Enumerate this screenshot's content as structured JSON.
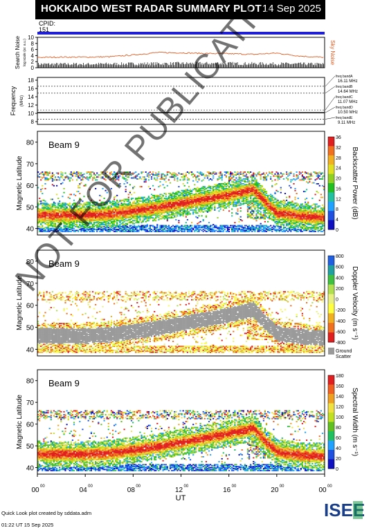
{
  "header": {
    "title": "HOKKAIDO WEST RADAR SUMMARY PLOT",
    "date": "14 Sep 2025"
  },
  "cpid": {
    "label": "CPID:",
    "value": "151"
  },
  "noise_panel": {
    "ylabel": "Search Noise",
    "ylabel_sub": "log scale (ar. a.u.)",
    "side_label": "Sky Noise",
    "ticks": [
      "10",
      "8",
      "6",
      "4",
      "2",
      "0"
    ]
  },
  "freq_panel": {
    "ylabel": "Frequency",
    "ylabel_sub": "(MHz)",
    "ticks": [
      "18",
      "16",
      "14",
      "12",
      "10",
      "8"
    ],
    "bands": [
      {
        "label": "freq bandA",
        "value": "16.11 MHz"
      },
      {
        "label": "freq bandB",
        "value": "14.64 MHz"
      },
      {
        "label": "freq bandC",
        "value": "11.07 MHz"
      },
      {
        "label": "freq bandD",
        "value": "10.50 MHz"
      },
      {
        "label": "freq bandE",
        "value": "9.11 MHz"
      }
    ]
  },
  "panels": [
    {
      "beam": "Beam  9",
      "ylabel": "Magnetic Latitude",
      "cbar_label": "Backscatter Power (dB)",
      "cbar_ticks": [
        "36",
        "32",
        "28",
        "24",
        "20",
        "16",
        "12",
        "8",
        "4",
        "0"
      ]
    },
    {
      "beam": "Beam  9",
      "ylabel": "Magnetic Latitude",
      "cbar_label": "Doppler Velocity (m s⁻¹)",
      "cbar_ticks": [
        "800",
        "600",
        "400",
        "200",
        "0",
        "-200",
        "-400",
        "-600",
        "-800"
      ],
      "ground_label_1": "Ground",
      "ground_label_2": "Scatter"
    },
    {
      "beam": "Beam  9",
      "ylabel": "Magnetic Latitude",
      "cbar_label": "Spectral Width (m s⁻¹)",
      "cbar_ticks": [
        "180",
        "160",
        "140",
        "120",
        "100",
        "80",
        "60",
        "40",
        "20",
        "0"
      ]
    }
  ],
  "lat_ticks": [
    "80",
    "70",
    "60",
    "50",
    "40"
  ],
  "xaxis": {
    "ticks": [
      "00",
      "04",
      "08",
      "12",
      "16",
      "20",
      "00"
    ],
    "tick_sup": "00",
    "label": "UT"
  },
  "watermark": "NOT FOR PUBLICATION",
  "footer": {
    "line1": "Quick Look plot created by sddata.adm",
    "line2": "01:22 UT 15 Sep 2025"
  },
  "logo": "ISEE",
  "colors": {
    "header_bg": "#000000",
    "cpid_bar": "#1f1fd6",
    "noise_line": "#e05a20",
    "ground": "#9a9a9a"
  },
  "chart_data": [
    {
      "type": "line",
      "title": "Search Noise",
      "x_unit": "UT hours",
      "xlim": [
        0,
        24
      ],
      "ylim": [
        0,
        10
      ],
      "series": [
        {
          "name": "Sky Noise",
          "x": [
            0,
            2,
            4,
            6,
            8,
            10,
            12,
            14,
            16,
            18,
            20,
            22,
            24
          ],
          "values": [
            3.4,
            3.5,
            3.5,
            3.6,
            4.2,
            5.0,
            4.9,
            4.7,
            4.6,
            4.4,
            4.8,
            3.8,
            3.4
          ]
        },
        {
          "x": [
            0,
            4,
            8,
            12,
            16,
            20,
            24
          ],
          "values": [
            1.2,
            1.2,
            1.3,
            1.4,
            1.4,
            1.3,
            1.2
          ]
        }
      ]
    },
    {
      "type": "line",
      "title": "Frequency",
      "xlim": [
        0,
        24
      ],
      "ylim": [
        8,
        18
      ],
      "series": [
        {
          "x": [
            0,
            24
          ],
          "values": [
            10.5,
            10.5
          ]
        }
      ],
      "reference_lines": [
        16.11,
        14.64,
        11.07,
        10.5,
        9.11
      ]
    },
    {
      "type": "heatmap",
      "quantity": "Backscatter Power (dB)",
      "xlim": [
        0,
        24
      ],
      "ylim": [
        37,
        85
      ],
      "zlim": [
        0,
        36
      ],
      "main_band_center": {
        "x": [
          0,
          2,
          4,
          6,
          8,
          10,
          12,
          14,
          16,
          18,
          19,
          20,
          22,
          24
        ],
        "values": [
          46,
          46,
          46,
          46.5,
          48,
          49.5,
          51.5,
          53.5,
          55.5,
          58,
          52,
          47,
          45.5,
          45
        ]
      }
    },
    {
      "type": "heatmap",
      "quantity": "Doppler Velocity (m s⁻¹)",
      "xlim": [
        0,
        24
      ],
      "ylim": [
        37,
        85
      ],
      "zlim": [
        -800,
        800
      ],
      "main_band_center": {
        "x": [
          0,
          2,
          4,
          6,
          8,
          10,
          12,
          14,
          16,
          18,
          19,
          20,
          22,
          24
        ],
        "values": [
          46,
          46,
          46,
          46.5,
          48,
          49.5,
          51.5,
          53.5,
          55.5,
          58,
          52,
          47,
          45.5,
          45
        ]
      }
    },
    {
      "type": "heatmap",
      "quantity": "Spectral Width (m s⁻¹)",
      "xlim": [
        0,
        24
      ],
      "ylim": [
        37,
        85
      ],
      "zlim": [
        0,
        190
      ],
      "main_band_center": {
        "x": [
          0,
          2,
          4,
          6,
          8,
          10,
          12,
          14,
          16,
          18,
          19,
          20,
          22,
          24
        ],
        "values": [
          46,
          46,
          46,
          46.5,
          48,
          49.5,
          51.5,
          53.5,
          55.5,
          58,
          52,
          47,
          45.5,
          45
        ]
      }
    }
  ]
}
